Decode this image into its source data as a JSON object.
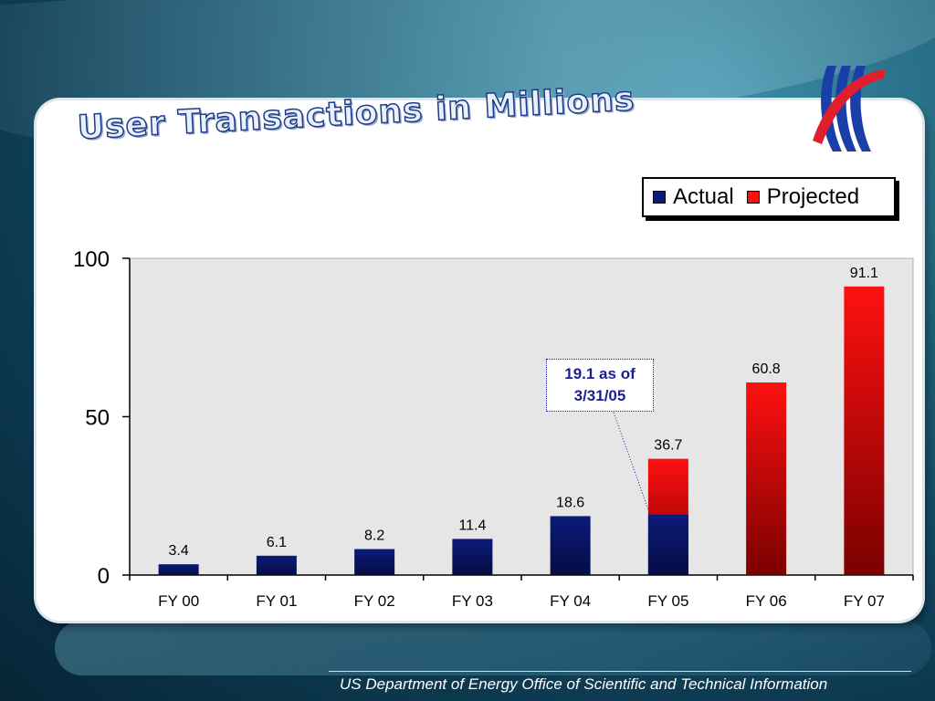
{
  "slide": {
    "title": "User Transactions in Millions",
    "footer": "US Department of Energy Office of Scientific and Technical Information",
    "callout": "19.1 as of 3/31/05",
    "logo_icon": "osti-swoosh-logo-icon"
  },
  "colors": {
    "actual": "#0b1b78",
    "actual_dark": "#050d45",
    "projected": "#ff1010",
    "projected_dark": "#7a0000",
    "callout_text": "#1c1f8f"
  },
  "chart_data": {
    "type": "bar",
    "title": "User Transactions in Millions",
    "categories": [
      "FY 00",
      "FY 01",
      "FY 02",
      "FY 03",
      "FY 04",
      "FY 05",
      "FY 06",
      "FY 07"
    ],
    "series": [
      {
        "name": "Actual",
        "values": [
          3.4,
          6.1,
          8.2,
          11.4,
          18.6,
          19.1,
          null,
          null
        ]
      },
      {
        "name": "Projected",
        "values": [
          null,
          null,
          null,
          null,
          null,
          36.7,
          60.8,
          91.1
        ]
      }
    ],
    "data_labels": [
      "3.4",
      "6.1",
      "8.2",
      "11.4",
      "18.6",
      "36.7",
      "60.8",
      "91.1"
    ],
    "ylim": [
      0,
      100
    ],
    "yticks": [
      0,
      50,
      100
    ],
    "grid": false,
    "legend": "top-right",
    "annotation": "19.1 as of 3/31/05"
  }
}
